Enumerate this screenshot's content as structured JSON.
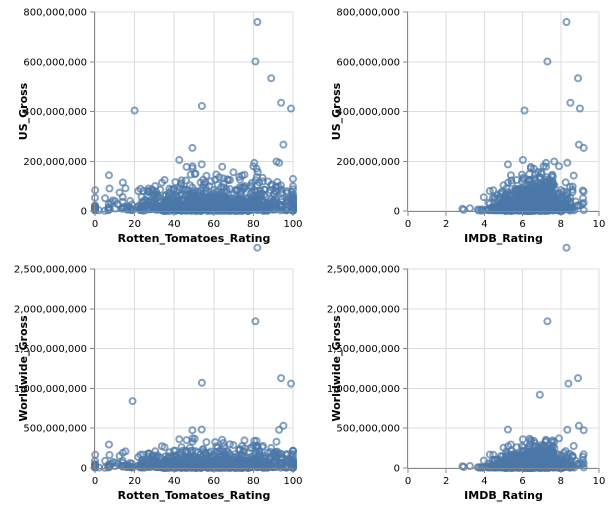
{
  "colors": {
    "point": "#4c78a8",
    "grid": "#dddddd",
    "axis": "#888888"
  },
  "chart_data": [
    {
      "type": "scatter",
      "panel": "top-left",
      "xlabel": "Rotten_Tomatoes_Rating",
      "ylabel": "US_Gross",
      "xlim": [
        0,
        100
      ],
      "ylim": [
        0,
        800000000
      ],
      "grid": true,
      "x_ticks": [
        "0",
        "20",
        "40",
        "60",
        "80",
        "100"
      ],
      "y_ticks": [
        "0",
        "200,000,000",
        "400,000,000",
        "600,000,000",
        "800,000,000"
      ],
      "notable_points": [
        [
          82,
          760000000
        ],
        [
          81,
          601000000
        ],
        [
          20,
          404000000
        ],
        [
          54,
          422000000
        ],
        [
          94,
          435000000
        ],
        [
          89,
          534000000
        ],
        [
          99,
          412000000
        ]
      ]
    },
    {
      "type": "scatter",
      "panel": "top-right",
      "xlabel": "IMDB_Rating",
      "ylabel": "US_Gross",
      "xlim": [
        0,
        10
      ],
      "ylim": [
        0,
        800000000
      ],
      "grid": true,
      "x_ticks": [
        "0",
        "2",
        "4",
        "6",
        "8",
        "10"
      ],
      "y_ticks": [
        "0",
        "200,000,000",
        "400,000,000",
        "600,000,000",
        "800,000,000"
      ],
      "notable_points": [
        [
          8.3,
          760000000
        ],
        [
          7.3,
          601000000
        ],
        [
          8.9,
          534000000
        ],
        [
          8.5,
          435000000
        ],
        [
          6.1,
          404000000
        ],
        [
          9.0,
          412000000
        ]
      ]
    },
    {
      "type": "scatter",
      "panel": "bottom-left",
      "xlabel": "Rotten_Tomatoes_Rating",
      "ylabel": "Worldwide_Gross",
      "xlim": [
        0,
        100
      ],
      "ylim": [
        0,
        2500000000
      ],
      "grid": true,
      "x_ticks": [
        "0",
        "20",
        "40",
        "60",
        "80",
        "100"
      ],
      "y_ticks": [
        "0",
        "500,000,000",
        "1,000,000,000",
        "1,500,000,000",
        "2,000,000,000",
        "2,500,000,000"
      ],
      "notable_points": [
        [
          82,
          2767000000
        ],
        [
          81,
          1843000000
        ],
        [
          99,
          1060000000
        ],
        [
          54,
          1070000000
        ],
        [
          19,
          840000000
        ],
        [
          94,
          1130000000
        ]
      ]
    },
    {
      "type": "scatter",
      "panel": "bottom-right",
      "xlabel": "IMDB_Rating",
      "ylabel": "Worldwide_Gross",
      "xlim": [
        0,
        10
      ],
      "ylim": [
        0,
        2500000000
      ],
      "grid": true,
      "x_ticks": [
        "0",
        "2",
        "4",
        "6",
        "8",
        "10"
      ],
      "y_ticks": [
        "0",
        "500,000,000",
        "1,000,000,000",
        "1,500,000,000",
        "2,000,000,000",
        "2,500,000,000"
      ],
      "notable_points": [
        [
          8.3,
          2767000000
        ],
        [
          7.3,
          1843000000
        ],
        [
          8.9,
          1130000000
        ],
        [
          8.4,
          1060000000
        ],
        [
          6.9,
          920000000
        ]
      ]
    }
  ]
}
